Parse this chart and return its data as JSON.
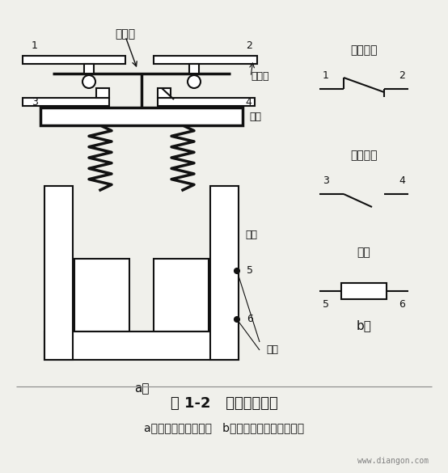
{
  "bg_color": "#f0f0eb",
  "title": "图 1-2   继电器示意图",
  "subtitle": "a）继电器结构示意图   b）继电器组成的电路符号",
  "label_a": "a）",
  "label_b": "b）",
  "website": "www.diangon.com",
  "dong_chu_dian": "动触点",
  "jing_chu_dian": "静触点",
  "heng_tie": "衔铁",
  "tie_xin": "铁心",
  "xian_quan": "线圈",
  "chang_bi": "常闭触点",
  "chang_kai": "常开触点",
  "xian_quan2": "线圈",
  "line_color": "#111111",
  "text_color": "#111111",
  "lw": 1.5,
  "lw_thick": 2.5
}
